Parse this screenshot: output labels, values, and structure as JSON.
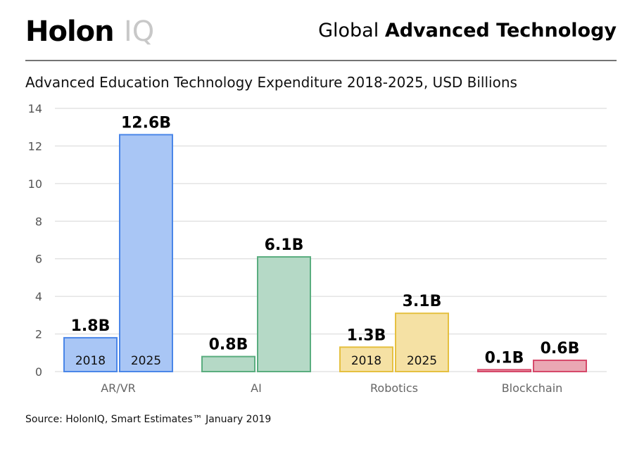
{
  "header": {
    "logo_primary": "Holon",
    "logo_secondary": "IQ",
    "title_light": "Global",
    "title_bold": "Advanced Technology"
  },
  "source": "Source: HolonIQ, Smart Estimates™ January 2019",
  "colors": {
    "AR/VR": {
      "fill": "#a9c6f5",
      "stroke": "#4a86e8"
    },
    "AI": {
      "fill": "#b5d9c6",
      "stroke": "#5aad7f"
    },
    "Robotics": {
      "fill": "#f5e1a4",
      "stroke": "#e5c040"
    },
    "Blockchain": {
      "fill": "#eaa7b3",
      "stroke": "#d6496a"
    }
  },
  "chart_data": {
    "type": "bar",
    "title": "Advanced Education Technology Expenditure 2018-2025, USD Billions",
    "categories": [
      "AR/VR",
      "AI",
      "Robotics",
      "Blockchain"
    ],
    "series": [
      {
        "name": "2018",
        "values": [
          1.8,
          0.8,
          1.3,
          0.1
        ],
        "labels": [
          "1.8B",
          "0.8B",
          "1.3B",
          "0.1B"
        ]
      },
      {
        "name": "2025",
        "values": [
          12.6,
          6.1,
          3.1,
          0.6
        ],
        "labels": [
          "12.6B",
          "6.1B",
          "3.1B",
          "0.6B"
        ]
      }
    ],
    "in_bar_year_labels": [
      true,
      false,
      true,
      false
    ],
    "ylim": [
      0,
      14
    ],
    "yticks": [
      0,
      2,
      4,
      6,
      8,
      10,
      12,
      14
    ],
    "grid": true,
    "xlabel": "",
    "ylabel": ""
  }
}
